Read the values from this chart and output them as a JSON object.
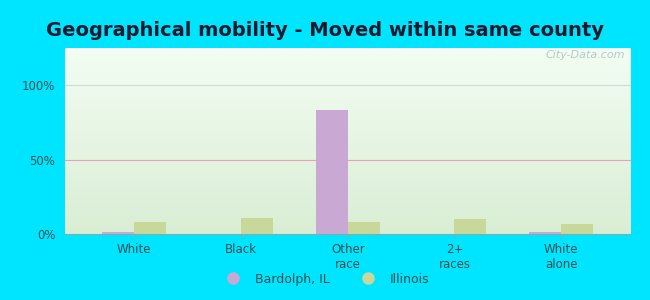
{
  "title": "Geographical mobility - Moved within same county",
  "categories": [
    "White",
    "Black",
    "Other\nrace",
    "2+\nraces",
    "White\nalone"
  ],
  "bardolph_values": [
    1.5,
    0.0,
    83.0,
    0.0,
    1.5
  ],
  "illinois_values": [
    8.0,
    11.0,
    8.0,
    10.0,
    7.0
  ],
  "bardolph_color": "#c9a8d4",
  "illinois_color": "#c8d89a",
  "title_fontsize": 14,
  "ylabel_ticks": [
    "0%",
    "50%",
    "100%"
  ],
  "ylabel_tick_vals": [
    0,
    50,
    100
  ],
  "ylim": [
    0,
    125
  ],
  "bar_width": 0.3,
  "bg_outer": "#00e5ff",
  "grid_color_50": "#e8a0b8",
  "grid_color_100": "#d0d8d0",
  "legend_bardolph": "Bardolph, IL",
  "legend_illinois": "Illinois",
  "watermark": "City-Data.com",
  "title_color": "#1a1a2e",
  "tick_label_color": "#2a5050",
  "axis_label_color": "#2a5050"
}
